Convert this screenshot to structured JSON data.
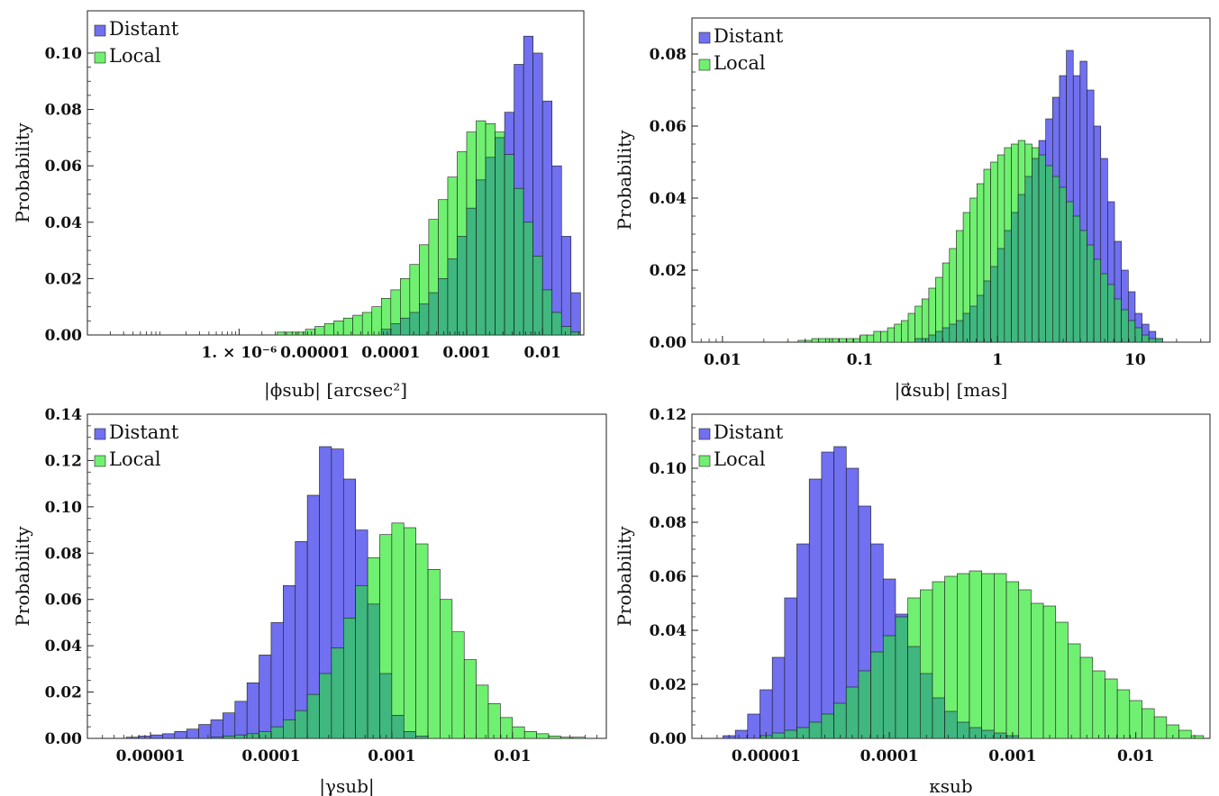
{
  "chart_data": [
    {
      "type": "bar",
      "xlabel": "|ϕsub| [arcsec²]",
      "ylabel": "Probability",
      "x_scale": "log",
      "xlim": [
        1e-08,
        0.035
      ],
      "ylim": [
        0,
        0.115
      ],
      "x_ticks": [
        {
          "value": 1e-06,
          "label": "1. × 10⁻⁶"
        },
        {
          "value": 1e-05,
          "label": "0.00001"
        },
        {
          "value": 0.0001,
          "label": "0.0001"
        },
        {
          "value": 0.001,
          "label": "0.001"
        },
        {
          "value": 0.01,
          "label": "0.01"
        }
      ],
      "y_ticks": [
        {
          "value": 0,
          "label": "0.00"
        },
        {
          "value": 0.02,
          "label": "0.02"
        },
        {
          "value": 0.04,
          "label": "0.04"
        },
        {
          "value": 0.06,
          "label": "0.06"
        },
        {
          "value": 0.08,
          "label": "0.08"
        },
        {
          "value": 0.1,
          "label": "0.10"
        }
      ],
      "legend": "top-left",
      "bins": {
        "log10_start": -7.0,
        "log10_end": -1.5,
        "count": 44
      },
      "series": [
        {
          "name": "Distant",
          "color": "#7070f0",
          "values": [
            0,
            0,
            0,
            0,
            0,
            0,
            0,
            0,
            0,
            0,
            0,
            0,
            0,
            0,
            0,
            0,
            0,
            0,
            0,
            0,
            0,
            0,
            0,
            0.002,
            0.004,
            0.006,
            0.008,
            0.011,
            0.015,
            0.02,
            0.027,
            0.035,
            0.045,
            0.055,
            0.063,
            0.07,
            0.079,
            0.096,
            0.106,
            0.1,
            0.083,
            0.06,
            0.035,
            0.015
          ]
        },
        {
          "name": "Local",
          "color": "#70f070",
          "values": [
            0,
            0,
            0,
            0,
            0,
            0,
            0,
            0,
            0,
            0,
            0,
            0,
            0.001,
            0.001,
            0.001,
            0.002,
            0.003,
            0.004,
            0.005,
            0.006,
            0.007,
            0.008,
            0.01,
            0.013,
            0.016,
            0.02,
            0.025,
            0.032,
            0.041,
            0.048,
            0.056,
            0.065,
            0.072,
            0.076,
            0.075,
            0.072,
            0.064,
            0.052,
            0.04,
            0.028,
            0.016,
            0.008,
            0.003,
            0.001
          ]
        }
      ]
    },
    {
      "type": "bar",
      "xlabel": "|α⃗sub| [mas]",
      "ylabel": "Probability",
      "x_scale": "log",
      "xlim": [
        0.006,
        35
      ],
      "ylim": [
        0,
        0.09
      ],
      "x_ticks": [
        {
          "value": 0.01,
          "label": "0.01"
        },
        {
          "value": 0.1,
          "label": "0.1"
        },
        {
          "value": 1,
          "label": "1"
        },
        {
          "value": 10,
          "label": "10"
        }
      ],
      "y_ticks": [
        {
          "value": 0,
          "label": "0.00"
        },
        {
          "value": 0.02,
          "label": "0.02"
        },
        {
          "value": 0.04,
          "label": "0.04"
        },
        {
          "value": 0.06,
          "label": "0.06"
        },
        {
          "value": 0.08,
          "label": "0.08"
        }
      ],
      "legend": "top-left",
      "bins": {
        "log10_start": -1.8,
        "log10_end": 1.45,
        "count": 65
      },
      "series": [
        {
          "name": "Distant",
          "color": "#7070f0",
          "values": [
            0,
            0,
            0,
            0,
            0,
            0,
            0,
            0,
            0,
            0,
            0,
            0,
            0,
            0,
            0,
            0,
            0,
            0,
            0,
            0,
            0,
            0,
            0,
            0,
            0.001,
            0.001,
            0.002,
            0.003,
            0.004,
            0.005,
            0.006,
            0.008,
            0.01,
            0.013,
            0.017,
            0.021,
            0.026,
            0.031,
            0.036,
            0.041,
            0.046,
            0.051,
            0.056,
            0.062,
            0.068,
            0.074,
            0.081,
            0.074,
            0.078,
            0.07,
            0.06,
            0.051,
            0.039,
            0.028,
            0.02,
            0.014,
            0.008,
            0.005,
            0.003,
            0.001,
            0,
            0,
            0,
            0,
            0
          ]
        },
        {
          "name": "Local",
          "color": "#70f070",
          "values": [
            0,
            0,
            0,
            0,
            0,
            0,
            0,
            0.0005,
            0.0005,
            0.001,
            0.001,
            0.001,
            0.001,
            0.001,
            0.001,
            0.001,
            0.002,
            0.002,
            0.003,
            0.003,
            0.004,
            0.005,
            0.006,
            0.008,
            0.01,
            0.012,
            0.015,
            0.018,
            0.022,
            0.026,
            0.031,
            0.036,
            0.04,
            0.044,
            0.048,
            0.05,
            0.052,
            0.054,
            0.055,
            0.056,
            0.055,
            0.054,
            0.052,
            0.049,
            0.046,
            0.043,
            0.039,
            0.035,
            0.031,
            0.027,
            0.023,
            0.019,
            0.016,
            0.012,
            0.009,
            0.006,
            0.004,
            0.002,
            0.001,
            0.001,
            0,
            0,
            0,
            0,
            0
          ]
        }
      ]
    },
    {
      "type": "bar",
      "xlabel": "|γsub|",
      "ylabel": "Probability",
      "x_scale": "log",
      "xlim": [
        3e-06,
        0.06
      ],
      "ylim": [
        0,
        0.14
      ],
      "x_ticks": [
        {
          "value": 1e-05,
          "label": "0.00001"
        },
        {
          "value": 0.0001,
          "label": "0.0001"
        },
        {
          "value": 0.001,
          "label": "0.001"
        },
        {
          "value": 0.01,
          "label": "0.01"
        }
      ],
      "y_ticks": [
        {
          "value": 0,
          "label": "0.00"
        },
        {
          "value": 0.02,
          "label": "0.02"
        },
        {
          "value": 0.04,
          "label": "0.04"
        },
        {
          "value": 0.06,
          "label": "0.06"
        },
        {
          "value": 0.08,
          "label": "0.08"
        },
        {
          "value": 0.1,
          "label": "0.10"
        },
        {
          "value": 0.12,
          "label": "0.12"
        },
        {
          "value": 0.14,
          "label": "0.14"
        }
      ],
      "legend": "top-left",
      "bins": {
        "log10_start": -5.2,
        "log10_end": -1.3,
        "count": 39
      },
      "series": [
        {
          "name": "Distant",
          "color": "#7070f0",
          "values": [
            0.0005,
            0.001,
            0.0015,
            0.002,
            0.003,
            0.004,
            0.006,
            0.008,
            0.011,
            0.016,
            0.024,
            0.036,
            0.05,
            0.066,
            0.085,
            0.105,
            0.126,
            0.125,
            0.112,
            0.09,
            0.058,
            0.028,
            0.01,
            0.003,
            0.001,
            0,
            0,
            0,
            0,
            0,
            0,
            0,
            0,
            0,
            0,
            0,
            0,
            0,
            0
          ]
        },
        {
          "name": "Local",
          "color": "#70f070",
          "values": [
            0,
            0,
            0,
            0,
            0,
            0,
            0,
            0.0005,
            0.001,
            0.0015,
            0.002,
            0.003,
            0.005,
            0.008,
            0.012,
            0.019,
            0.028,
            0.039,
            0.052,
            0.066,
            0.078,
            0.088,
            0.093,
            0.091,
            0.084,
            0.073,
            0.06,
            0.046,
            0.034,
            0.023,
            0.015,
            0.009,
            0.005,
            0.003,
            0.002,
            0.001,
            0.0005,
            0.0005,
            0
          ]
        }
      ]
    },
    {
      "type": "bar",
      "xlabel": "κsub",
      "ylabel": "Probability",
      "x_scale": "log",
      "xlim": [
        2.5e-06,
        0.04
      ],
      "ylim": [
        0,
        0.12
      ],
      "x_ticks": [
        {
          "value": 1e-05,
          "label": "0.00001"
        },
        {
          "value": 0.0001,
          "label": "0.0001"
        },
        {
          "value": 0.001,
          "label": "0.001"
        },
        {
          "value": 0.01,
          "label": "0.01"
        }
      ],
      "y_ticks": [
        {
          "value": 0,
          "label": "0.00"
        },
        {
          "value": 0.02,
          "label": "0.02"
        },
        {
          "value": 0.04,
          "label": "0.04"
        },
        {
          "value": 0.06,
          "label": "0.06"
        },
        {
          "value": 0.08,
          "label": "0.08"
        },
        {
          "value": 0.1,
          "label": "0.10"
        },
        {
          "value": 0.12,
          "label": "0.12"
        }
      ],
      "legend": "top-left",
      "bins": {
        "log10_start": -5.35,
        "log10_end": -1.45,
        "count": 39
      },
      "series": [
        {
          "name": "Distant",
          "color": "#7070f0",
          "values": [
            0.001,
            0.003,
            0.009,
            0.018,
            0.03,
            0.052,
            0.072,
            0.096,
            0.106,
            0.108,
            0.1,
            0.086,
            0.072,
            0.059,
            0.046,
            0.034,
            0.024,
            0.015,
            0.01,
            0.006,
            0.004,
            0.003,
            0.002,
            0.001,
            0,
            0,
            0,
            0,
            0,
            0,
            0,
            0,
            0,
            0,
            0,
            0,
            0,
            0,
            0
          ]
        },
        {
          "name": "Local",
          "color": "#70f070",
          "values": [
            0,
            0,
            0,
            0.001,
            0.002,
            0.003,
            0.004,
            0.006,
            0.009,
            0.013,
            0.019,
            0.025,
            0.032,
            0.038,
            0.045,
            0.052,
            0.055,
            0.058,
            0.06,
            0.061,
            0.062,
            0.061,
            0.061,
            0.058,
            0.055,
            0.05,
            0.049,
            0.043,
            0.035,
            0.03,
            0.025,
            0.022,
            0.018,
            0.014,
            0.011,
            0.008,
            0.005,
            0.003,
            0.001
          ]
        }
      ]
    }
  ]
}
